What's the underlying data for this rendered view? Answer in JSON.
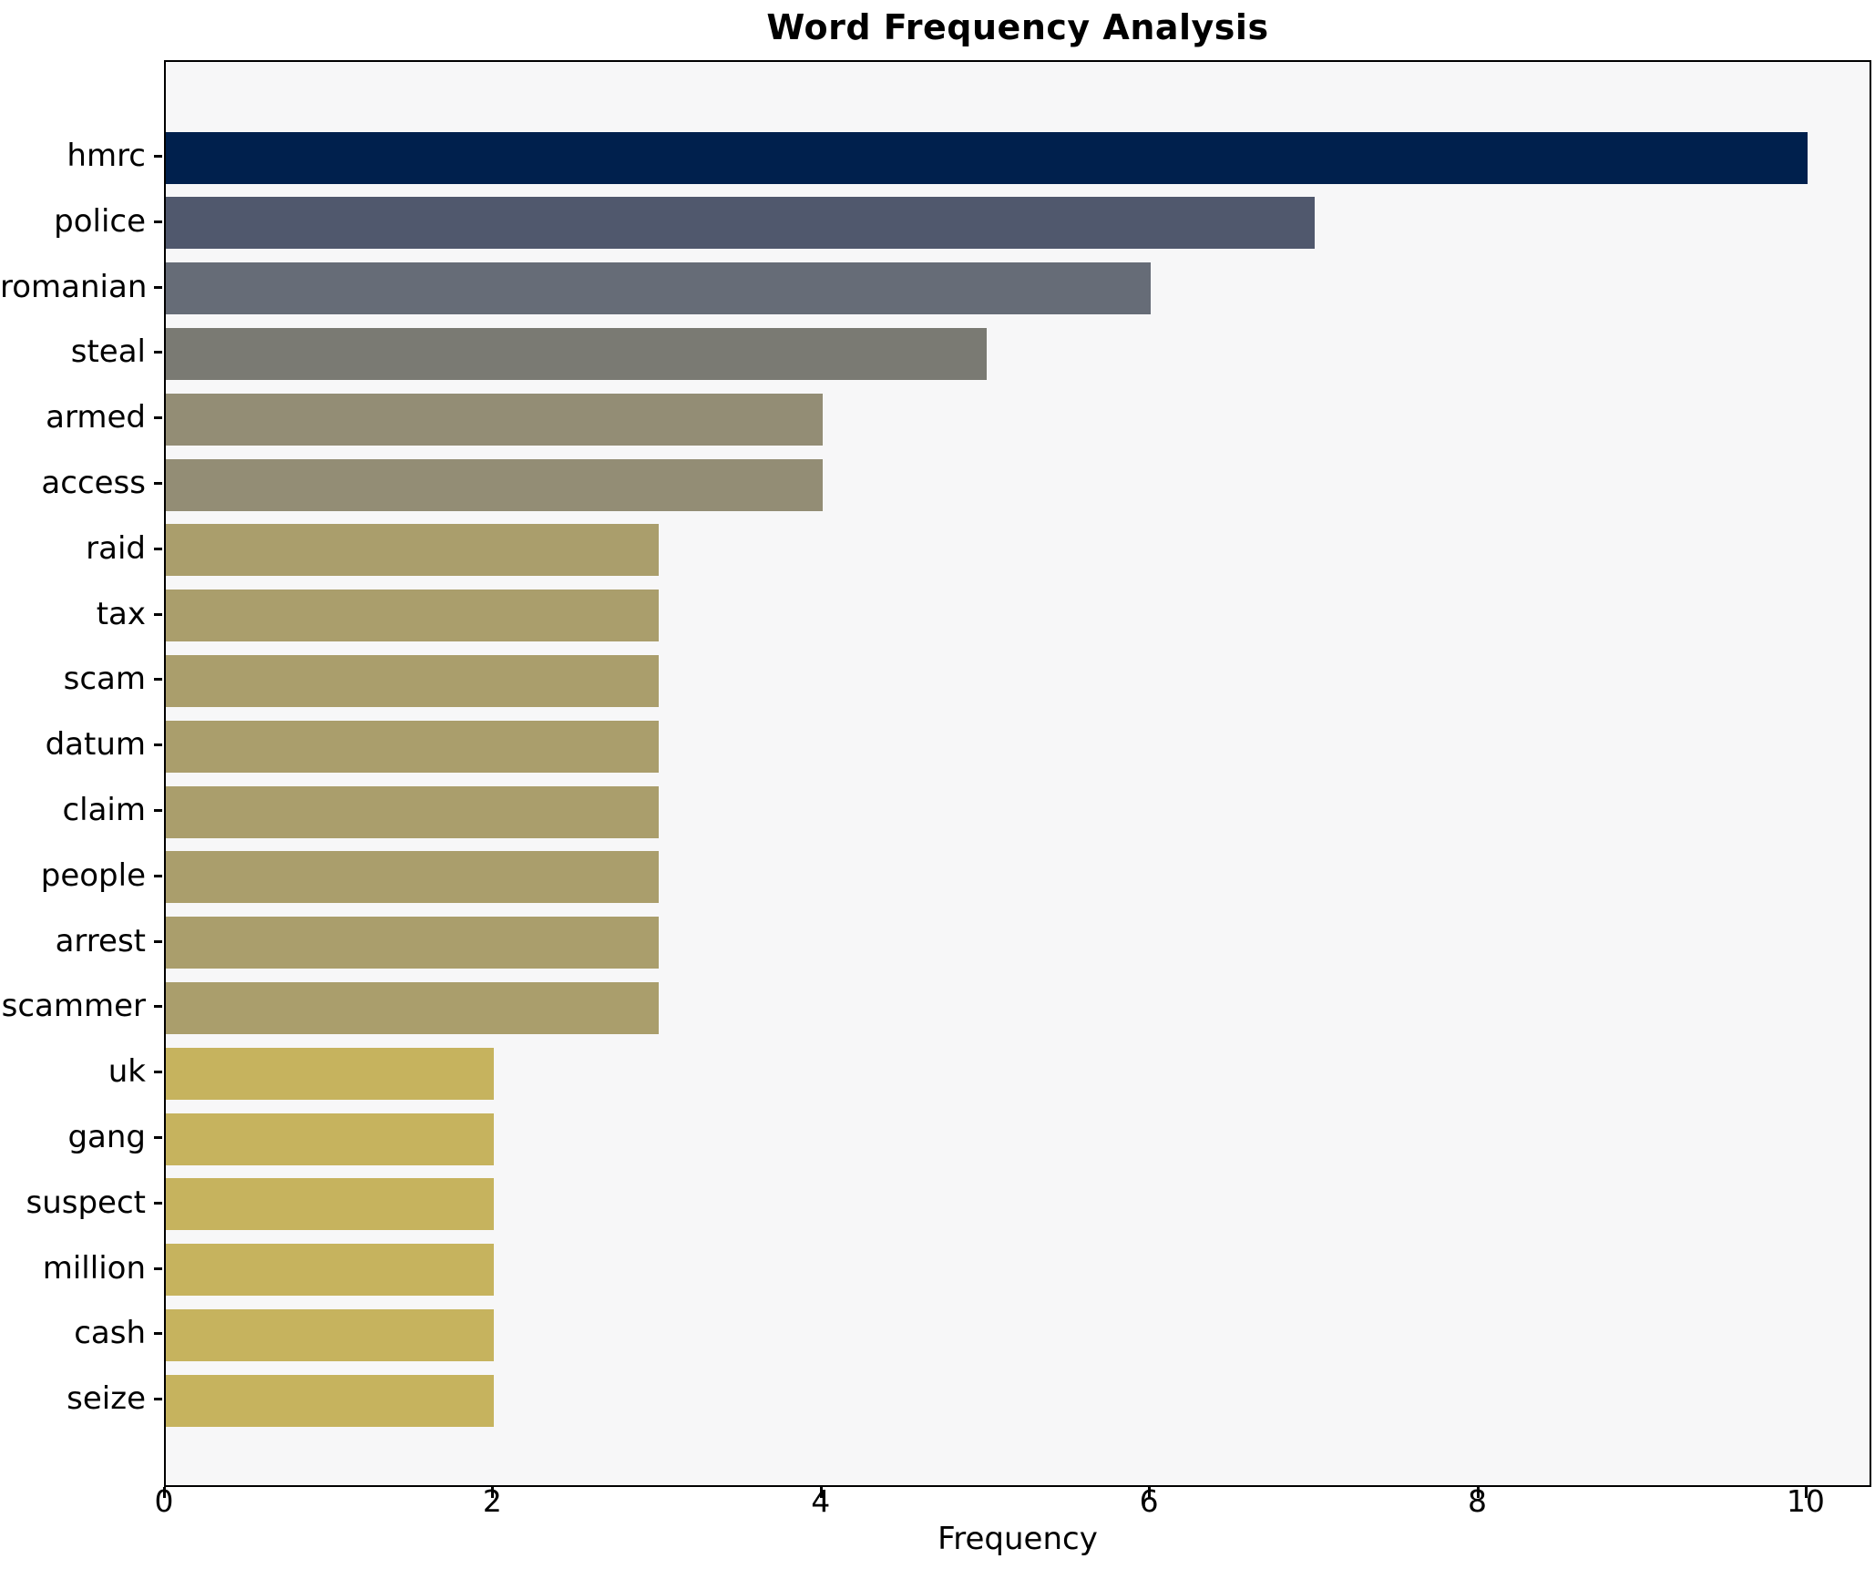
{
  "chart_data": {
    "type": "bar",
    "orientation": "horizontal",
    "title": "Word Frequency Analysis",
    "xlabel": "Frequency",
    "ylabel": "",
    "xlim": [
      0,
      10.4
    ],
    "x_ticks": [
      0,
      2,
      4,
      6,
      8,
      10
    ],
    "grid": false,
    "legend": false,
    "plot_background": "#f7f7f8",
    "axis_color": "#000000",
    "categories": [
      "hmrc",
      "police",
      "romanian",
      "steal",
      "armed",
      "access",
      "raid",
      "tax",
      "scam",
      "datum",
      "claim",
      "people",
      "arrest",
      "scammer",
      "uk",
      "gang",
      "suspect",
      "million",
      "cash",
      "seize"
    ],
    "values": [
      10,
      7,
      6,
      5,
      4,
      4,
      3,
      3,
      3,
      3,
      3,
      3,
      3,
      3,
      2,
      2,
      2,
      2,
      2,
      2
    ],
    "bar_colors": [
      "#00204d",
      "#50586d",
      "#666c77",
      "#7a7a73",
      "#938d75",
      "#938d75",
      "#aa9e6c",
      "#aa9e6c",
      "#aa9e6c",
      "#aa9e6c",
      "#aa9e6c",
      "#aa9e6c",
      "#aa9e6c",
      "#aa9e6c",
      "#c6b35e",
      "#c6b35e",
      "#c6b35e",
      "#c6b35e",
      "#c6b35e",
      "#c6b35e"
    ]
  }
}
